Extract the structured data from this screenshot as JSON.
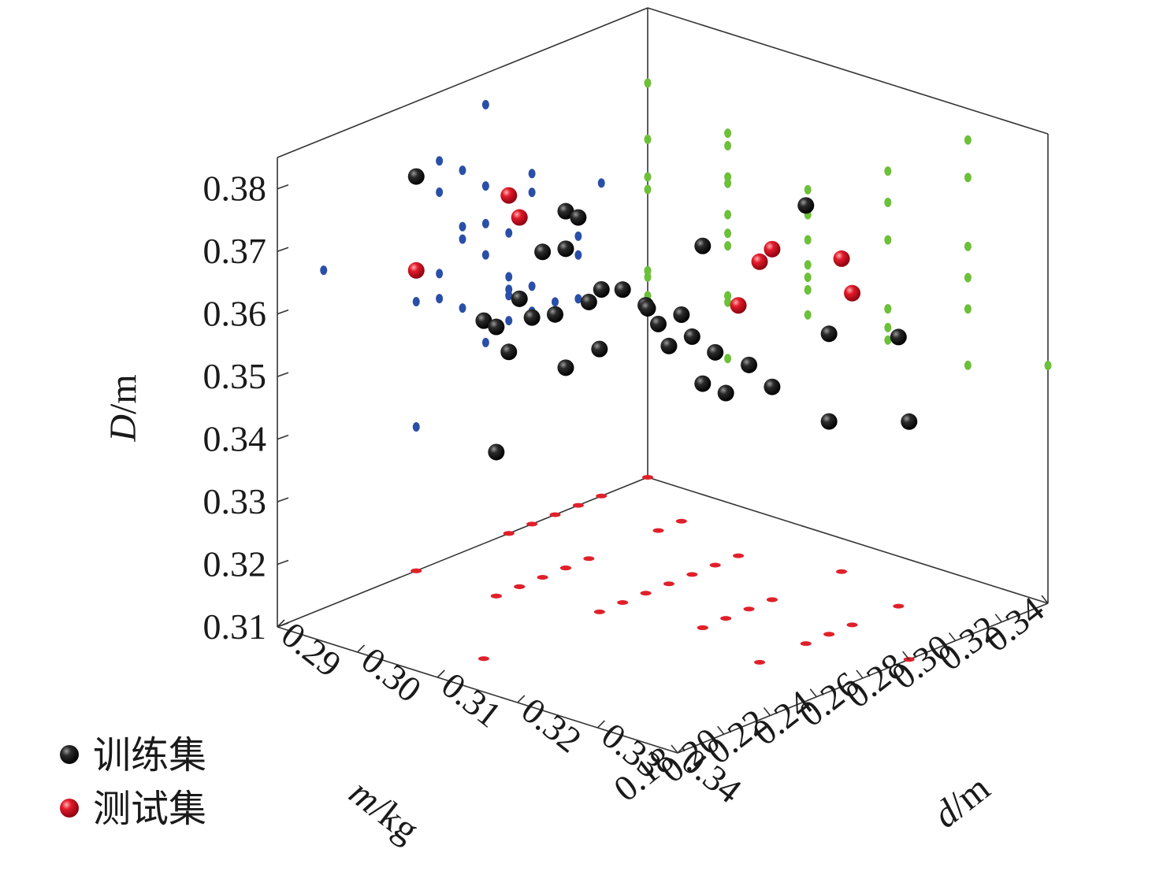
{
  "chart_data": {
    "type": "scatter",
    "title": "",
    "axes": {
      "m": {
        "label": "m/kg",
        "ticks": [
          "0.18",
          "0.20",
          "0.22",
          "0.24",
          "0.26",
          "0.28",
          "0.30",
          "0.32",
          "0.34"
        ],
        "range": [
          0.18,
          0.34
        ]
      },
      "d": {
        "label": "d/m",
        "ticks": [
          "0.29",
          "0.30",
          "0.31",
          "0.32",
          "0.33",
          "0.34"
        ],
        "range": [
          0.29,
          0.34
        ]
      },
      "D": {
        "label": "D/m",
        "ticks": [
          "0.31",
          "0.32",
          "0.33",
          "0.34",
          "0.35",
          "0.36",
          "0.37",
          "0.38"
        ],
        "range": [
          0.31,
          0.385
        ]
      }
    },
    "legend": {
      "position": "bottom-left",
      "entries": [
        {
          "name": "训练集",
          "color": "#000000"
        },
        {
          "name": "测试集",
          "color": "#e0202a"
        }
      ]
    },
    "projection_colors": {
      "m_D_wall": "#2a4fa8",
      "d_D_wall": "#6cc03a",
      "floor": "#e0202a"
    },
    "series": [
      {
        "name": "训练集",
        "points": [
          {
            "m": 0.27,
            "d": 0.33,
            "D": 0.38
          },
          {
            "m": 0.24,
            "d": 0.29,
            "D": 0.373
          },
          {
            "m": 0.26,
            "d": 0.32,
            "D": 0.371
          },
          {
            "m": 0.27,
            "d": 0.3,
            "D": 0.367
          },
          {
            "m": 0.2,
            "d": 0.31,
            "D": 0.364
          },
          {
            "m": 0.26,
            "d": 0.31,
            "D": 0.36
          },
          {
            "m": 0.26,
            "d": 0.3,
            "D": 0.362
          },
          {
            "m": 0.28,
            "d": 0.33,
            "D": 0.358
          },
          {
            "m": 0.31,
            "d": 0.29,
            "D": 0.356
          },
          {
            "m": 0.27,
            "d": 0.31,
            "D": 0.356
          },
          {
            "m": 0.31,
            "d": 0.33,
            "D": 0.353
          },
          {
            "m": 0.25,
            "d": 0.3,
            "D": 0.356
          },
          {
            "m": 0.26,
            "d": 0.32,
            "D": 0.349
          },
          {
            "m": 0.24,
            "d": 0.3,
            "D": 0.353
          },
          {
            "m": 0.28,
            "d": 0.34,
            "D": 0.348
          },
          {
            "m": 0.25,
            "d": 0.31,
            "D": 0.352
          },
          {
            "m": 0.28,
            "d": 0.32,
            "D": 0.349
          },
          {
            "m": 0.28,
            "d": 0.3,
            "D": 0.351
          },
          {
            "m": 0.27,
            "d": 0.32,
            "D": 0.346
          },
          {
            "m": 0.29,
            "d": 0.31,
            "D": 0.348
          },
          {
            "m": 0.28,
            "d": 0.31,
            "D": 0.348
          },
          {
            "m": 0.29,
            "d": 0.32,
            "D": 0.344
          },
          {
            "m": 0.3,
            "d": 0.31,
            "D": 0.344
          },
          {
            "m": 0.32,
            "d": 0.3,
            "D": 0.343
          },
          {
            "m": 0.32,
            "d": 0.29,
            "D": 0.343
          },
          {
            "m": 0.31,
            "d": 0.3,
            "D": 0.343
          },
          {
            "m": 0.29,
            "d": 0.29,
            "D": 0.343
          },
          {
            "m": 0.28,
            "d": 0.33,
            "D": 0.344
          },
          {
            "m": 0.3,
            "d": 0.29,
            "D": 0.342
          },
          {
            "m": 0.27,
            "d": 0.3,
            "D": 0.342
          },
          {
            "m": 0.28,
            "d": 0.29,
            "D": 0.339
          },
          {
            "m": 0.24,
            "d": 0.3,
            "D": 0.333
          },
          {
            "m": 0.34,
            "d": 0.29,
            "D": 0.337
          },
          {
            "m": 0.27,
            "d": 0.3,
            "D": 0.361
          }
        ]
      },
      {
        "name": "测试集",
        "points": [
          {
            "m": 0.25,
            "d": 0.33,
            "D": 0.374
          },
          {
            "m": 0.29,
            "d": 0.32,
            "D": 0.366
          },
          {
            "m": 0.25,
            "d": 0.3,
            "D": 0.369
          },
          {
            "m": 0.28,
            "d": 0.29,
            "D": 0.364
          },
          {
            "m": 0.29,
            "d": 0.33,
            "D": 0.363
          },
          {
            "m": 0.24,
            "d": 0.29,
            "D": 0.358
          },
          {
            "m": 0.32,
            "d": 0.32,
            "D": 0.36
          },
          {
            "m": 0.31,
            "d": 0.31,
            "D": 0.35
          }
        ]
      }
    ]
  }
}
